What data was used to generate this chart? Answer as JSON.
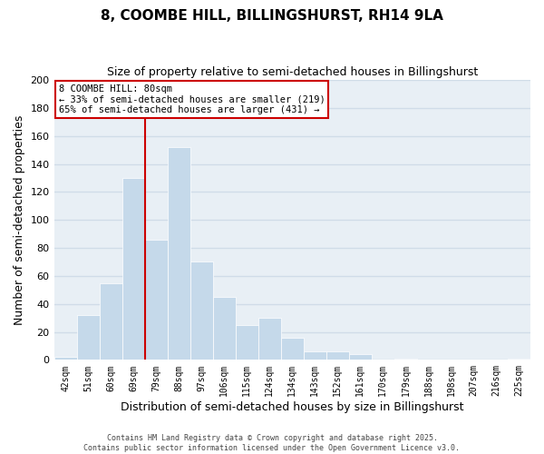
{
  "title1": "8, COOMBE HILL, BILLINGSHURST, RH14 9LA",
  "title2": "Size of property relative to semi-detached houses in Billingshurst",
  "xlabel": "Distribution of semi-detached houses by size in Billingshurst",
  "ylabel": "Number of semi-detached properties",
  "bar_color": "#c5d9ea",
  "background_color": "#ffffff",
  "grid_color": "#d0dce8",
  "plot_bg_color": "#e8eff5",
  "categories": [
    "42sqm",
    "51sqm",
    "60sqm",
    "69sqm",
    "79sqm",
    "88sqm",
    "97sqm",
    "106sqm",
    "115sqm",
    "124sqm",
    "134sqm",
    "143sqm",
    "152sqm",
    "161sqm",
    "170sqm",
    "179sqm",
    "188sqm",
    "198sqm",
    "207sqm",
    "216sqm",
    "225sqm"
  ],
  "values": [
    2,
    32,
    55,
    130,
    86,
    152,
    70,
    45,
    25,
    30,
    16,
    6,
    6,
    4,
    0,
    1,
    0,
    0,
    0,
    0,
    1
  ],
  "ylim": [
    0,
    200
  ],
  "yticks": [
    0,
    20,
    40,
    60,
    80,
    100,
    120,
    140,
    160,
    180,
    200
  ],
  "vline_x": 3.5,
  "vline_color": "#cc0000",
  "annotation_title": "8 COOMBE HILL: 80sqm",
  "annotation_line1": "← 33% of semi-detached houses are smaller (219)",
  "annotation_line2": "65% of semi-detached houses are larger (431) →",
  "annotation_box_color": "#ffffff",
  "annotation_box_edge": "#cc0000",
  "footer1": "Contains HM Land Registry data © Crown copyright and database right 2025.",
  "footer2": "Contains public sector information licensed under the Open Government Licence v3.0."
}
